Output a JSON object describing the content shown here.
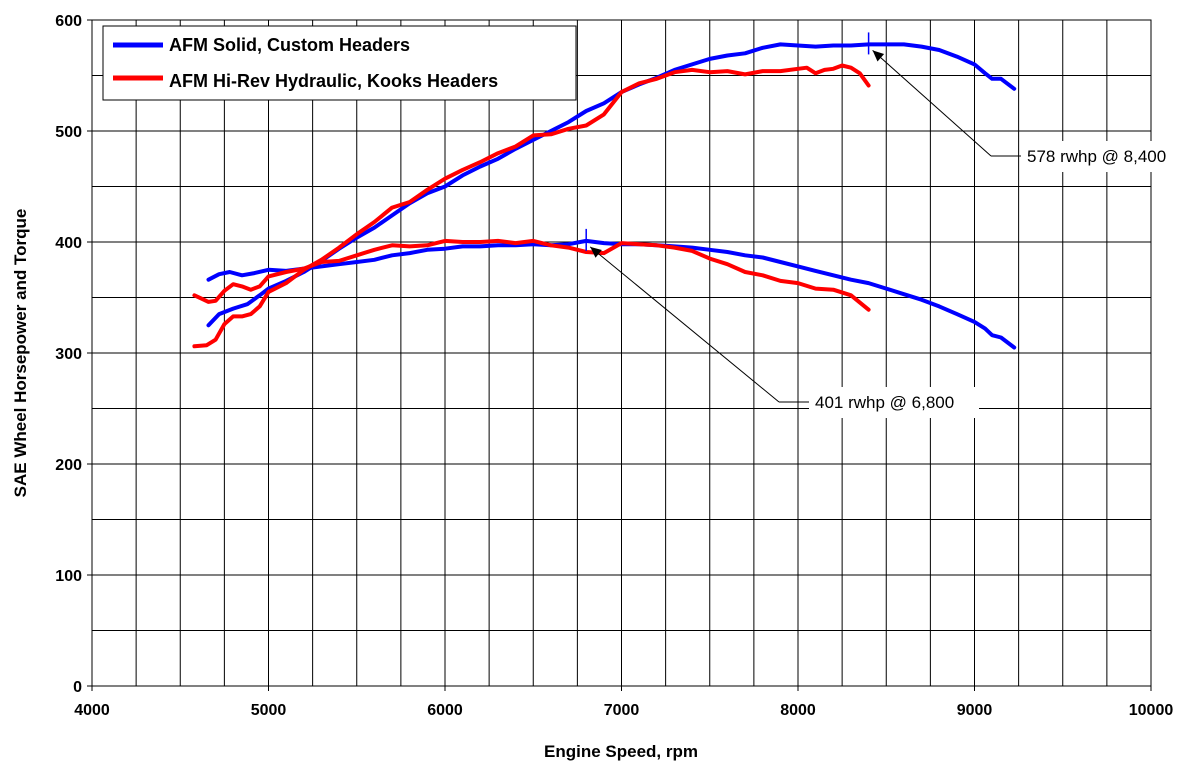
{
  "chart_data": {
    "type": "line",
    "xlabel": "Engine Speed, rpm",
    "ylabel": "SAE Wheel Horsepower and Torque",
    "xlim": [
      4000,
      10000
    ],
    "ylim": [
      0,
      600
    ],
    "x_ticks": [
      "4000",
      "5000",
      "6000",
      "7000",
      "8000",
      "9000",
      "10000"
    ],
    "y_ticks": [
      "0",
      "100",
      "200",
      "300",
      "400",
      "500",
      "600"
    ],
    "grid": true,
    "grid_x_step": 250,
    "grid_y_step": 50,
    "legend_position": "top-left",
    "series": [
      {
        "name": "AFM Solid, Custom Headers",
        "color": "#0000ff",
        "curves": [
          {
            "label": "power",
            "points": [
              [
                4660,
                325
              ],
              [
                4720,
                335
              ],
              [
                4800,
                340
              ],
              [
                4880,
                344
              ],
              [
                4950,
                352
              ],
              [
                5000,
                358
              ],
              [
                5100,
                365
              ],
              [
                5200,
                373
              ],
              [
                5300,
                383
              ],
              [
                5400,
                394
              ],
              [
                5500,
                404
              ],
              [
                5600,
                413
              ],
              [
                5700,
                424
              ],
              [
                5800,
                435
              ],
              [
                5900,
                444
              ],
              [
                6000,
                450
              ],
              [
                6100,
                460
              ],
              [
                6200,
                468
              ],
              [
                6300,
                475
              ],
              [
                6400,
                484
              ],
              [
                6500,
                492
              ],
              [
                6600,
                500
              ],
              [
                6700,
                508
              ],
              [
                6800,
                518
              ],
              [
                6900,
                525
              ],
              [
                7000,
                535
              ],
              [
                7100,
                542
              ],
              [
                7200,
                548
              ],
              [
                7300,
                555
              ],
              [
                7400,
                560
              ],
              [
                7500,
                565
              ],
              [
                7600,
                568
              ],
              [
                7700,
                570
              ],
              [
                7800,
                575
              ],
              [
                7900,
                578
              ],
              [
                8000,
                577
              ],
              [
                8100,
                576
              ],
              [
                8200,
                577
              ],
              [
                8300,
                577
              ],
              [
                8400,
                578
              ],
              [
                8500,
                578
              ],
              [
                8600,
                578
              ],
              [
                8700,
                576
              ],
              [
                8800,
                573
              ],
              [
                8900,
                567
              ],
              [
                9000,
                560
              ],
              [
                9060,
                552
              ],
              [
                9100,
                547
              ],
              [
                9150,
                547
              ],
              [
                9225,
                538
              ]
            ]
          },
          {
            "label": "torque",
            "points": [
              [
                4660,
                366
              ],
              [
                4720,
                371
              ],
              [
                4780,
                373
              ],
              [
                4850,
                370
              ],
              [
                4920,
                372
              ],
              [
                5000,
                375
              ],
              [
                5100,
                374
              ],
              [
                5200,
                376
              ],
              [
                5300,
                378
              ],
              [
                5400,
                380
              ],
              [
                5500,
                382
              ],
              [
                5600,
                384
              ],
              [
                5700,
                388
              ],
              [
                5800,
                390
              ],
              [
                5900,
                393
              ],
              [
                6000,
                394
              ],
              [
                6100,
                396
              ],
              [
                6200,
                396
              ],
              [
                6300,
                397
              ],
              [
                6400,
                397
              ],
              [
                6500,
                398
              ],
              [
                6600,
                397
              ],
              [
                6700,
                398
              ],
              [
                6800,
                401
              ],
              [
                6900,
                399
              ],
              [
                7000,
                398
              ],
              [
                7100,
                398
              ],
              [
                7200,
                397
              ],
              [
                7300,
                396
              ],
              [
                7400,
                395
              ],
              [
                7500,
                393
              ],
              [
                7600,
                391
              ],
              [
                7700,
                388
              ],
              [
                7800,
                386
              ],
              [
                7900,
                382
              ],
              [
                8000,
                378
              ],
              [
                8100,
                374
              ],
              [
                8200,
                370
              ],
              [
                8300,
                366
              ],
              [
                8400,
                363
              ],
              [
                8500,
                358
              ],
              [
                8600,
                353
              ],
              [
                8700,
                348
              ],
              [
                8800,
                342
              ],
              [
                8900,
                335
              ],
              [
                9000,
                328
              ],
              [
                9060,
                322
              ],
              [
                9100,
                316
              ],
              [
                9150,
                314
              ],
              [
                9225,
                305
              ]
            ]
          }
        ]
      },
      {
        "name": "AFM Hi-Rev Hydraulic, Kooks Headers",
        "color": "#ff0000",
        "curves": [
          {
            "label": "power",
            "points": [
              [
                4580,
                306
              ],
              [
                4650,
                307
              ],
              [
                4700,
                312
              ],
              [
                4750,
                326
              ],
              [
                4800,
                333
              ],
              [
                4850,
                333
              ],
              [
                4900,
                335
              ],
              [
                4950,
                342
              ],
              [
                5000,
                355
              ],
              [
                5100,
                363
              ],
              [
                5200,
                375
              ],
              [
                5300,
                384
              ],
              [
                5400,
                395
              ],
              [
                5500,
                407
              ],
              [
                5600,
                418
              ],
              [
                5700,
                431
              ],
              [
                5800,
                436
              ],
              [
                5900,
                447
              ],
              [
                6000,
                457
              ],
              [
                6100,
                465
              ],
              [
                6200,
                472
              ],
              [
                6300,
                480
              ],
              [
                6400,
                486
              ],
              [
                6500,
                496
              ],
              [
                6600,
                497
              ],
              [
                6700,
                502
              ],
              [
                6800,
                505
              ],
              [
                6900,
                515
              ],
              [
                7000,
                535
              ],
              [
                7100,
                543
              ],
              [
                7200,
                547
              ],
              [
                7300,
                553
              ],
              [
                7400,
                555
              ],
              [
                7500,
                553
              ],
              [
                7600,
                554
              ],
              [
                7700,
                551
              ],
              [
                7800,
                554
              ],
              [
                7900,
                554
              ],
              [
                8000,
                556
              ],
              [
                8050,
                557
              ],
              [
                8100,
                552
              ],
              [
                8150,
                555
              ],
              [
                8200,
                556
              ],
              [
                8250,
                559
              ],
              [
                8300,
                557
              ],
              [
                8350,
                552
              ],
              [
                8400,
                541
              ]
            ]
          },
          {
            "label": "torque",
            "points": [
              [
                4580,
                352
              ],
              [
                4620,
                349
              ],
              [
                4660,
                346
              ],
              [
                4700,
                347
              ],
              [
                4750,
                356
              ],
              [
                4800,
                362
              ],
              [
                4850,
                360
              ],
              [
                4900,
                357
              ],
              [
                4950,
                360
              ],
              [
                5000,
                369
              ],
              [
                5100,
                373
              ],
              [
                5200,
                376
              ],
              [
                5300,
                382
              ],
              [
                5400,
                383
              ],
              [
                5500,
                388
              ],
              [
                5600,
                393
              ],
              [
                5700,
                397
              ],
              [
                5800,
                396
              ],
              [
                5900,
                397
              ],
              [
                6000,
                401
              ],
              [
                6100,
                400
              ],
              [
                6200,
                400
              ],
              [
                6300,
                401
              ],
              [
                6400,
                399
              ],
              [
                6500,
                401
              ],
              [
                6600,
                397
              ],
              [
                6700,
                395
              ],
              [
                6800,
                391
              ],
              [
                6900,
                390
              ],
              [
                7000,
                399
              ],
              [
                7100,
                398
              ],
              [
                7200,
                397
              ],
              [
                7300,
                395
              ],
              [
                7400,
                392
              ],
              [
                7500,
                385
              ],
              [
                7600,
                380
              ],
              [
                7700,
                373
              ],
              [
                7800,
                370
              ],
              [
                7900,
                365
              ],
              [
                8000,
                363
              ],
              [
                8100,
                358
              ],
              [
                8200,
                357
              ],
              [
                8300,
                352
              ],
              [
                8400,
                339
              ]
            ]
          }
        ]
      }
    ],
    "annotations": [
      {
        "text": "578 rwhp @ 8,400",
        "x": 8400,
        "y": 578
      },
      {
        "text": "401 rwhp @ 6,800",
        "x": 6800,
        "y": 401
      }
    ]
  }
}
